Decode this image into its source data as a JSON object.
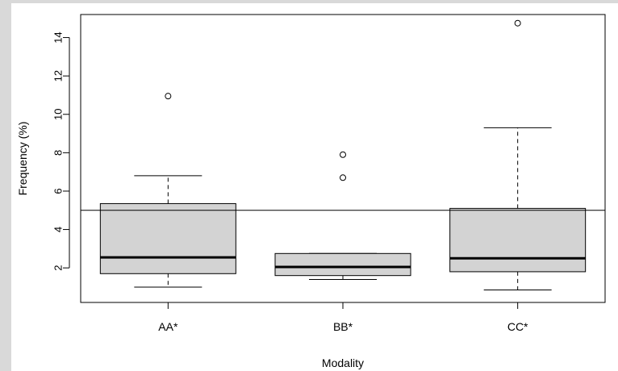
{
  "chart_data": {
    "type": "boxplot",
    "xlabel": "Modality",
    "ylabel": "Frequency (%)",
    "ylim": [
      0.2,
      15.2
    ],
    "y_ticks": [
      2,
      4,
      6,
      8,
      10,
      12,
      14
    ],
    "reference_line": 5,
    "categories": [
      "AA*",
      "BB*",
      "CC*"
    ],
    "boxes": [
      {
        "label": "AA*",
        "whisker_low": 1.0,
        "q1": 1.7,
        "median": 2.55,
        "q3": 5.35,
        "whisker_high": 6.8,
        "outliers": [
          10.95
        ]
      },
      {
        "label": "BB*",
        "whisker_low": 1.4,
        "q1": 1.6,
        "median": 2.05,
        "q3": 2.75,
        "whisker_high": 2.75,
        "outliers": [
          6.7,
          7.9
        ]
      },
      {
        "label": "CC*",
        "whisker_low": 0.85,
        "q1": 1.8,
        "median": 2.5,
        "q3": 5.1,
        "whisker_high": 9.3,
        "outliers": [
          14.75
        ]
      }
    ],
    "box_fill": "#d3d3d3",
    "line_color": "#000000",
    "grid": false,
    "legend": "none"
  }
}
